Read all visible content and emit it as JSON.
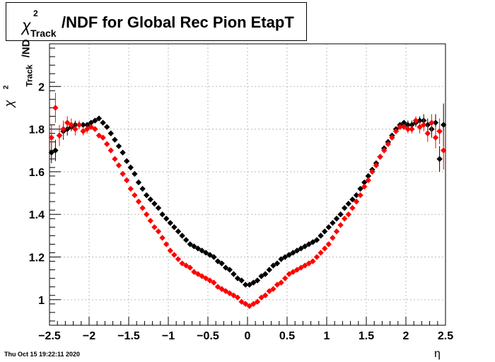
{
  "title": {
    "chi": "χ",
    "sup": "2",
    "sub": "Track",
    "rest": "/NDF for Global Rec Pion EtapT"
  },
  "yaxis": {
    "chi": "χ",
    "sup": "2",
    "sub": "Track",
    "rest": "/ND"
  },
  "xaxis": {
    "label": "η"
  },
  "timestamp": "Thu Oct 15 19:22:11 2020",
  "chart_data": {
    "type": "scatter",
    "xlim": [
      -2.5,
      2.5
    ],
    "ylim": [
      0.88,
      2.2
    ],
    "xticks": [
      "−2.5",
      "−2",
      "−1.5",
      "−1",
      "−0.5",
      "0",
      "0.5",
      "1",
      "1.5",
      "2",
      "2.5"
    ],
    "xtick_values": [
      -2.5,
      -2,
      -1.5,
      -1,
      -0.5,
      0,
      0.5,
      1,
      1.5,
      2,
      2.5
    ],
    "yticks": [
      "1",
      "1.2",
      "1.4",
      "1.6",
      "1.8",
      "2"
    ],
    "ytick_values": [
      1.0,
      1.2,
      1.4,
      1.6,
      1.8,
      2.0
    ],
    "grid": true,
    "series": [
      {
        "color": "#000000",
        "x": [
          -2.475,
          -2.425,
          -2.375,
          -2.325,
          -2.275,
          -2.225,
          -2.175,
          -2.125,
          -2.075,
          -2.025,
          -1.975,
          -1.925,
          -1.875,
          -1.825,
          -1.775,
          -1.725,
          -1.675,
          -1.625,
          -1.575,
          -1.525,
          -1.475,
          -1.425,
          -1.375,
          -1.325,
          -1.275,
          -1.225,
          -1.175,
          -1.125,
          -1.075,
          -1.025,
          -0.975,
          -0.925,
          -0.875,
          -0.825,
          -0.775,
          -0.725,
          -0.675,
          -0.625,
          -0.575,
          -0.525,
          -0.475,
          -0.425,
          -0.375,
          -0.325,
          -0.275,
          -0.225,
          -0.175,
          -0.125,
          -0.075,
          -0.025,
          0.025,
          0.075,
          0.125,
          0.175,
          0.225,
          0.275,
          0.325,
          0.375,
          0.425,
          0.475,
          0.525,
          0.575,
          0.625,
          0.675,
          0.725,
          0.775,
          0.825,
          0.875,
          0.925,
          0.975,
          1.025,
          1.075,
          1.125,
          1.175,
          1.225,
          1.275,
          1.325,
          1.375,
          1.425,
          1.475,
          1.525,
          1.575,
          1.625,
          1.675,
          1.725,
          1.775,
          1.825,
          1.875,
          1.925,
          1.975,
          2.025,
          2.075,
          2.125,
          2.175,
          2.225,
          2.275,
          2.325,
          2.375,
          2.425,
          2.475
        ],
        "y": [
          1.69,
          1.7,
          1.77,
          1.79,
          1.8,
          1.81,
          1.82,
          1.82,
          1.82,
          1.82,
          1.83,
          1.84,
          1.85,
          1.83,
          1.81,
          1.78,
          1.75,
          1.72,
          1.69,
          1.65,
          1.62,
          1.59,
          1.55,
          1.52,
          1.49,
          1.47,
          1.45,
          1.43,
          1.4,
          1.38,
          1.36,
          1.34,
          1.32,
          1.3,
          1.28,
          1.26,
          1.25,
          1.24,
          1.23,
          1.22,
          1.21,
          1.2,
          1.18,
          1.17,
          1.15,
          1.14,
          1.12,
          1.1,
          1.09,
          1.07,
          1.07,
          1.08,
          1.09,
          1.11,
          1.12,
          1.14,
          1.16,
          1.17,
          1.19,
          1.2,
          1.21,
          1.22,
          1.23,
          1.24,
          1.25,
          1.26,
          1.27,
          1.28,
          1.3,
          1.32,
          1.34,
          1.36,
          1.38,
          1.4,
          1.43,
          1.45,
          1.47,
          1.49,
          1.52,
          1.55,
          1.58,
          1.61,
          1.64,
          1.67,
          1.71,
          1.74,
          1.77,
          1.8,
          1.82,
          1.83,
          1.82,
          1.82,
          1.83,
          1.84,
          1.84,
          1.82,
          1.8,
          1.83,
          1.66,
          1.82
        ],
        "yerr": [
          0.05,
          0.05,
          0.04,
          0.04,
          0.03,
          0.02,
          0.02,
          0.02,
          0.01,
          0.01,
          0.01,
          0.01,
          0.01,
          0.01,
          0.005,
          0.005,
          0.005,
          0.005,
          0.005,
          0.005,
          0.005,
          0.005,
          0.005,
          0.005,
          0.005,
          0.005,
          0.005,
          0.005,
          0.005,
          0.005,
          0.005,
          0.005,
          0.005,
          0.005,
          0.005,
          0.005,
          0.005,
          0.005,
          0.005,
          0.005,
          0.005,
          0.005,
          0.005,
          0.005,
          0.005,
          0.005,
          0.005,
          0.005,
          0.005,
          0.005,
          0.005,
          0.005,
          0.005,
          0.005,
          0.005,
          0.005,
          0.005,
          0.005,
          0.005,
          0.005,
          0.005,
          0.005,
          0.005,
          0.005,
          0.005,
          0.005,
          0.005,
          0.005,
          0.005,
          0.005,
          0.005,
          0.005,
          0.005,
          0.005,
          0.005,
          0.005,
          0.005,
          0.005,
          0.005,
          0.005,
          0.005,
          0.005,
          0.005,
          0.005,
          0.005,
          0.005,
          0.01,
          0.01,
          0.01,
          0.01,
          0.02,
          0.02,
          0.02,
          0.02,
          0.03,
          0.03,
          0.04,
          0.04,
          0.06,
          0.1
        ]
      },
      {
        "color": "#ff0000",
        "x": [
          -2.475,
          -2.425,
          -2.375,
          -2.325,
          -2.275,
          -2.225,
          -2.175,
          -2.125,
          -2.075,
          -2.025,
          -1.975,
          -1.925,
          -1.875,
          -1.825,
          -1.775,
          -1.725,
          -1.675,
          -1.625,
          -1.575,
          -1.525,
          -1.475,
          -1.425,
          -1.375,
          -1.325,
          -1.275,
          -1.225,
          -1.175,
          -1.125,
          -1.075,
          -1.025,
          -0.975,
          -0.925,
          -0.875,
          -0.825,
          -0.775,
          -0.725,
          -0.675,
          -0.625,
          -0.575,
          -0.525,
          -0.475,
          -0.425,
          -0.375,
          -0.325,
          -0.275,
          -0.225,
          -0.175,
          -0.125,
          -0.075,
          -0.025,
          0.025,
          0.075,
          0.125,
          0.175,
          0.225,
          0.275,
          0.325,
          0.375,
          0.425,
          0.475,
          0.525,
          0.575,
          0.625,
          0.675,
          0.725,
          0.775,
          0.825,
          0.875,
          0.925,
          0.975,
          1.025,
          1.075,
          1.125,
          1.175,
          1.225,
          1.275,
          1.325,
          1.375,
          1.425,
          1.475,
          1.525,
          1.575,
          1.625,
          1.675,
          1.725,
          1.775,
          1.825,
          1.875,
          1.925,
          1.975,
          2.025,
          2.075,
          2.125,
          2.175,
          2.225,
          2.275,
          2.325,
          2.375,
          2.425,
          2.475
        ],
        "y": [
          1.76,
          1.9,
          1.77,
          1.8,
          1.83,
          1.82,
          1.8,
          1.82,
          1.79,
          1.8,
          1.81,
          1.8,
          1.77,
          1.76,
          1.73,
          1.7,
          1.66,
          1.63,
          1.59,
          1.56,
          1.52,
          1.49,
          1.46,
          1.43,
          1.4,
          1.37,
          1.34,
          1.32,
          1.29,
          1.26,
          1.23,
          1.21,
          1.19,
          1.17,
          1.16,
          1.15,
          1.13,
          1.12,
          1.11,
          1.1,
          1.09,
          1.08,
          1.06,
          1.05,
          1.04,
          1.03,
          1.02,
          1.01,
          0.99,
          0.98,
          0.97,
          0.98,
          0.99,
          1.01,
          1.02,
          1.04,
          1.05,
          1.07,
          1.08,
          1.1,
          1.12,
          1.13,
          1.14,
          1.15,
          1.16,
          1.17,
          1.18,
          1.2,
          1.22,
          1.24,
          1.26,
          1.29,
          1.32,
          1.35,
          1.38,
          1.4,
          1.43,
          1.46,
          1.49,
          1.53,
          1.56,
          1.6,
          1.63,
          1.67,
          1.7,
          1.73,
          1.76,
          1.79,
          1.81,
          1.81,
          1.8,
          1.8,
          1.84,
          1.81,
          1.82,
          1.78,
          1.83,
          1.76,
          1.79,
          1.7
        ],
        "yerr": [
          0.06,
          0.07,
          0.05,
          0.04,
          0.03,
          0.03,
          0.03,
          0.02,
          0.02,
          0.02,
          0.01,
          0.01,
          0.01,
          0.01,
          0.005,
          0.005,
          0.005,
          0.005,
          0.005,
          0.005,
          0.005,
          0.005,
          0.005,
          0.005,
          0.005,
          0.005,
          0.005,
          0.005,
          0.005,
          0.005,
          0.005,
          0.005,
          0.005,
          0.005,
          0.005,
          0.005,
          0.005,
          0.005,
          0.005,
          0.005,
          0.005,
          0.005,
          0.005,
          0.005,
          0.005,
          0.005,
          0.005,
          0.005,
          0.005,
          0.005,
          0.005,
          0.005,
          0.005,
          0.005,
          0.005,
          0.005,
          0.005,
          0.005,
          0.005,
          0.005,
          0.005,
          0.005,
          0.005,
          0.005,
          0.005,
          0.005,
          0.005,
          0.005,
          0.005,
          0.005,
          0.005,
          0.005,
          0.005,
          0.005,
          0.005,
          0.005,
          0.005,
          0.005,
          0.005,
          0.005,
          0.005,
          0.005,
          0.005,
          0.005,
          0.005,
          0.005,
          0.01,
          0.01,
          0.01,
          0.01,
          0.02,
          0.02,
          0.02,
          0.03,
          0.03,
          0.04,
          0.04,
          0.05,
          0.06,
          0.09
        ]
      }
    ]
  }
}
